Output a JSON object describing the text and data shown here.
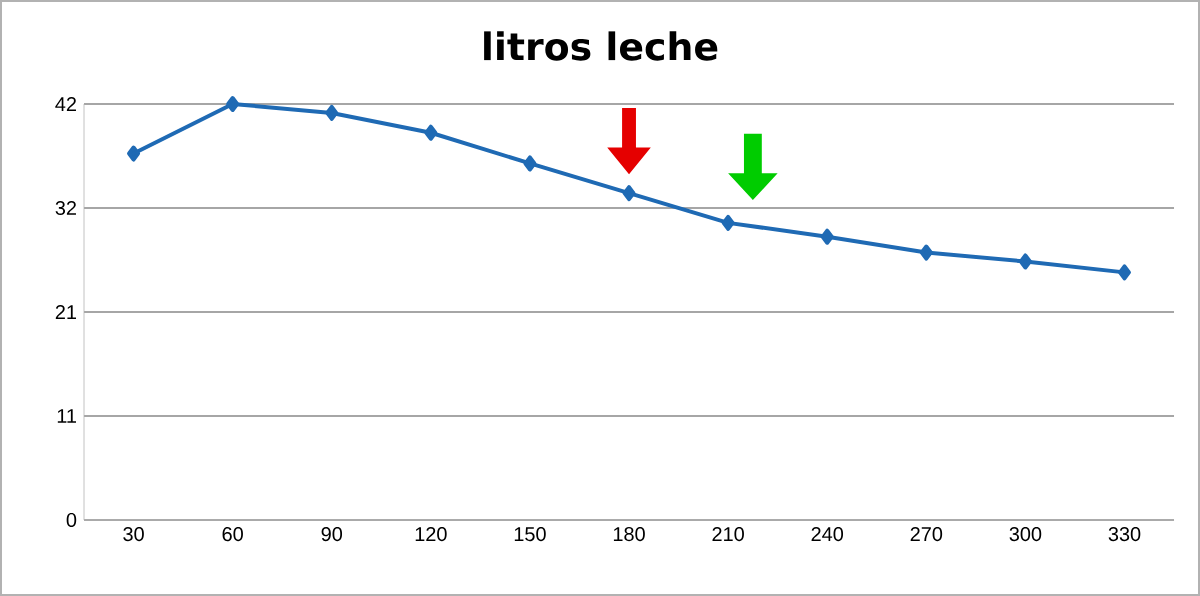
{
  "chart_data": {
    "type": "line",
    "title": "litros leche",
    "categories": [
      "30",
      "60",
      "90",
      "120",
      "150",
      "180",
      "210",
      "240",
      "270",
      "300",
      "330"
    ],
    "series": [
      {
        "color": "#1f6ab4",
        "values": [
          37.0,
          42.0,
          41.1,
          39.1,
          36.0,
          33.0,
          30.0,
          28.6,
          27.0,
          26.1,
          25.0
        ]
      }
    ],
    "ylim": [
      0,
      42
    ],
    "yticks": [
      0,
      {
        "value": 10.5,
        "label": "11"
      },
      21,
      {
        "value": 31.5,
        "label": "32"
      },
      42
    ],
    "grid": "y",
    "marker": "diamond",
    "line_style": "solid"
  }
}
